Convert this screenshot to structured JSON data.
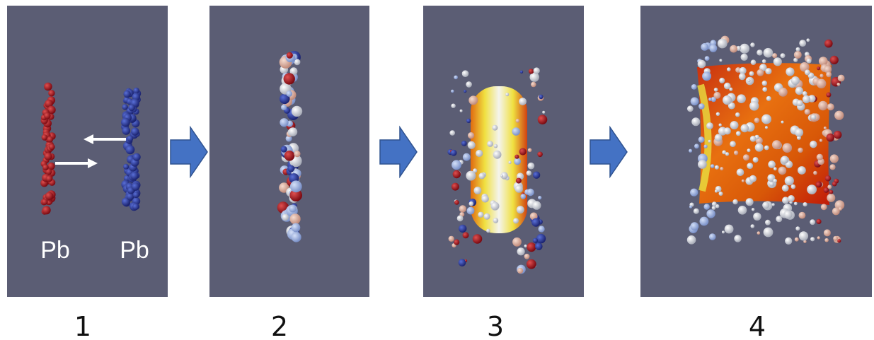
{
  "panels": [
    {
      "caption": "1",
      "labels": [
        "Pb",
        "Pb"
      ]
    },
    {
      "caption": "2"
    },
    {
      "caption": "3"
    },
    {
      "caption": "4"
    }
  ]
}
